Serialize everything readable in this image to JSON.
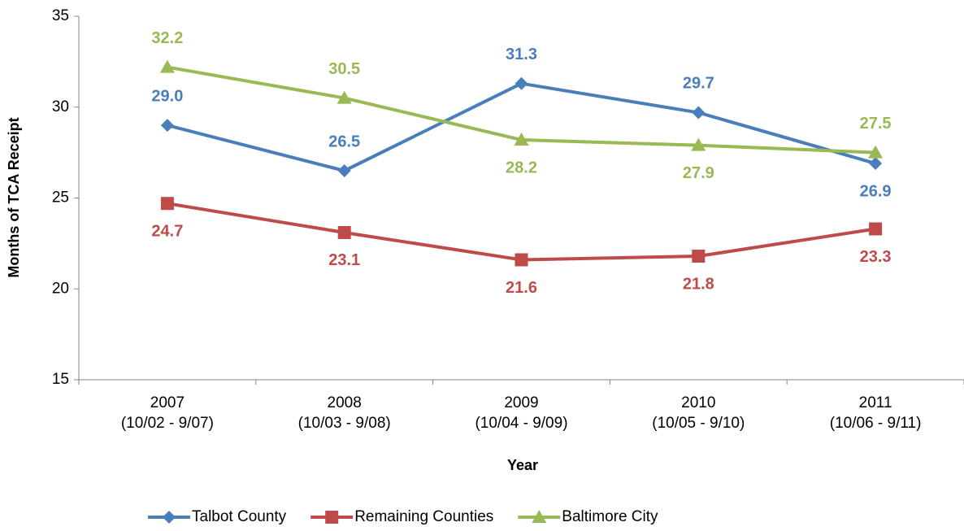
{
  "chart_data": {
    "type": "line",
    "x_label": "Year",
    "y_label": "Months of TCA Receipt",
    "categories": [
      [
        "2007",
        "(10/02 - 9/07)"
      ],
      [
        "2008",
        "(10/03 - 9/08)"
      ],
      [
        "2009",
        "(10/04 - 9/09)"
      ],
      [
        "2010",
        "(10/05 - 9/10)"
      ],
      [
        "2011",
        "(10/06 - 9/11)"
      ]
    ],
    "series": [
      {
        "name": "Talbot County",
        "color": "#4a7ebb",
        "marker": "diamond",
        "values": [
          29.0,
          26.5,
          31.3,
          29.7,
          26.9
        ],
        "value_labels": [
          "29.0",
          "26.5",
          "31.3",
          "29.7",
          "26.9"
        ]
      },
      {
        "name": "Remaining Counties",
        "color": "#be4b48",
        "marker": "square",
        "values": [
          24.7,
          23.1,
          21.6,
          21.8,
          23.3
        ],
        "value_labels": [
          "24.7",
          "23.1",
          "21.6",
          "21.8",
          "23.3"
        ]
      },
      {
        "name": "Baltimore City",
        "color": "#98b954",
        "marker": "triangle",
        "values": [
          32.2,
          30.5,
          28.2,
          27.9,
          27.5
        ],
        "value_labels": [
          "32.2",
          "30.5",
          "28.2",
          "27.9",
          "27.5"
        ]
      }
    ],
    "ylim": [
      15,
      35
    ],
    "yticks": [
      15,
      20,
      25,
      30,
      35
    ],
    "legend": "bottom"
  }
}
